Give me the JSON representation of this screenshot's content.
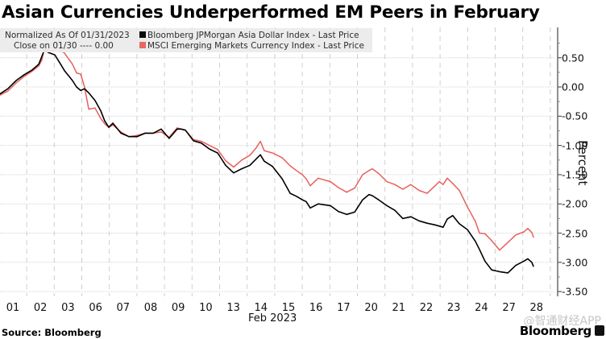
{
  "chart_data": {
    "type": "line",
    "title": "Asian Currencies Underperformed EM Peers in February",
    "xlabel": "Feb 2023",
    "ylabel": "Percent",
    "ylim": [
      -3.5,
      1.0
    ],
    "yticks": [
      "0.50",
      "0.00",
      "-0.50",
      "-1.00",
      "-1.50",
      "-2.00",
      "-2.50",
      "-3.00",
      "-3.50"
    ],
    "ytick_values": [
      0.5,
      0.0,
      -0.5,
      -1.0,
      -1.5,
      -2.0,
      -2.5,
      -3.0,
      -3.5
    ],
    "categories": [
      "01",
      "02",
      "03",
      "06",
      "07",
      "08",
      "09",
      "10",
      "13",
      "14",
      "15",
      "16",
      "17",
      "20",
      "21",
      "22",
      "23",
      "24",
      "27",
      "28"
    ],
    "grid": true,
    "legend_position": "top-left",
    "legend_header": [
      "Normalized As Of 01/31/2023",
      "Close on 01/30 ---- 0.00"
    ],
    "series": [
      {
        "name": "Bloomberg JPMorgan Asia Dollar Index - Last Price",
        "color": "#000000",
        "x": [
          -0.47,
          -0.18,
          0.12,
          0.41,
          0.7,
          0.94,
          1.05,
          1.14,
          1.29,
          1.52,
          1.73,
          1.87,
          2.16,
          2.31,
          2.46,
          2.6,
          2.75,
          2.98,
          3.19,
          3.33,
          3.48,
          3.63,
          3.92,
          4.21,
          4.5,
          4.8,
          5.09,
          5.38,
          5.67,
          5.96,
          6.11,
          6.26,
          6.55,
          6.84,
          7.13,
          7.43,
          7.72,
          8.01,
          8.3,
          8.6,
          8.83,
          8.98,
          9.12,
          9.42,
          9.77,
          10.06,
          10.29,
          10.5,
          10.64,
          10.79,
          11.08,
          11.52,
          11.81,
          12.11,
          12.4,
          12.69,
          12.92,
          13.04,
          13.27,
          13.57,
          13.86,
          14.15,
          14.44,
          14.74,
          15.03,
          15.32,
          15.47,
          15.61,
          15.76,
          15.96,
          16.2,
          16.49,
          16.78,
          16.93,
          17.13,
          17.37,
          17.66,
          17.96,
          18.25,
          18.54,
          18.68,
          18.83,
          18.89
        ],
        "values": [
          -0.12,
          -0.03,
          0.11,
          0.21,
          0.29,
          0.39,
          0.52,
          0.63,
          0.59,
          0.55,
          0.39,
          0.28,
          0.11,
          0.0,
          -0.06,
          -0.03,
          -0.1,
          -0.23,
          -0.41,
          -0.58,
          -0.69,
          -0.62,
          -0.79,
          -0.85,
          -0.85,
          -0.79,
          -0.79,
          -0.72,
          -0.88,
          -0.72,
          -0.72,
          -0.74,
          -0.92,
          -0.96,
          -1.06,
          -1.13,
          -1.34,
          -1.47,
          -1.4,
          -1.34,
          -1.23,
          -1.16,
          -1.27,
          -1.36,
          -1.57,
          -1.82,
          -1.87,
          -1.93,
          -1.96,
          -2.07,
          -2.0,
          -2.03,
          -2.13,
          -2.18,
          -2.14,
          -1.93,
          -1.84,
          -1.86,
          -1.93,
          -2.03,
          -2.11,
          -2.25,
          -2.22,
          -2.29,
          -2.33,
          -2.36,
          -2.38,
          -2.4,
          -2.26,
          -2.2,
          -2.34,
          -2.44,
          -2.64,
          -2.78,
          -2.98,
          -3.13,
          -3.16,
          -3.18,
          -3.05,
          -2.98,
          -2.94,
          -3.0,
          -3.07
        ]
      },
      {
        "name": "MSCI Emerging Markets Currency Index - Last Price",
        "color": "#e8605c",
        "x": [
          -0.47,
          -0.18,
          0.12,
          0.41,
          0.7,
          0.94,
          1.05,
          1.14,
          1.29,
          1.52,
          1.67,
          1.73,
          1.87,
          2.16,
          2.31,
          2.46,
          2.6,
          2.75,
          2.98,
          3.19,
          3.33,
          3.48,
          3.63,
          3.92,
          4.21,
          4.5,
          4.8,
          5.09,
          5.38,
          5.67,
          5.96,
          6.11,
          6.26,
          6.55,
          6.84,
          7.13,
          7.43,
          7.72,
          8.01,
          8.3,
          8.6,
          8.83,
          8.98,
          9.12,
          9.42,
          9.77,
          10.06,
          10.29,
          10.5,
          10.64,
          10.79,
          11.08,
          11.52,
          11.81,
          12.11,
          12.4,
          12.69,
          12.92,
          13.04,
          13.27,
          13.57,
          13.86,
          14.15,
          14.44,
          14.74,
          15.03,
          15.32,
          15.47,
          15.61,
          15.76,
          15.96,
          16.2,
          16.49,
          16.78,
          16.93,
          17.13,
          17.37,
          17.66,
          17.96,
          18.25,
          18.54,
          18.68,
          18.83,
          18.89
        ],
        "values": [
          -0.14,
          -0.07,
          0.07,
          0.18,
          0.27,
          0.36,
          0.46,
          0.66,
          0.62,
          0.63,
          0.8,
          0.62,
          0.58,
          0.39,
          0.24,
          0.22,
          0.0,
          -0.38,
          -0.36,
          -0.54,
          -0.63,
          -0.69,
          -0.65,
          -0.77,
          -0.85,
          -0.83,
          -0.79,
          -0.79,
          -0.77,
          -0.86,
          -0.7,
          -0.72,
          -0.74,
          -0.9,
          -0.93,
          -1.0,
          -1.07,
          -1.26,
          -1.37,
          -1.25,
          -1.17,
          -1.04,
          -0.93,
          -1.09,
          -1.13,
          -1.21,
          -1.35,
          -1.43,
          -1.5,
          -1.57,
          -1.69,
          -1.56,
          -1.62,
          -1.72,
          -1.8,
          -1.73,
          -1.5,
          -1.43,
          -1.4,
          -1.48,
          -1.62,
          -1.67,
          -1.75,
          -1.67,
          -1.77,
          -1.82,
          -1.69,
          -1.62,
          -1.67,
          -1.56,
          -1.65,
          -1.77,
          -2.05,
          -2.3,
          -2.5,
          -2.51,
          -2.63,
          -2.79,
          -2.66,
          -2.53,
          -2.48,
          -2.42,
          -2.49,
          -2.57
        ]
      }
    ]
  },
  "footer": {
    "source": "Source: Bloomberg",
    "brand": "Bloomberg",
    "watermark": "@智通财经APP"
  }
}
